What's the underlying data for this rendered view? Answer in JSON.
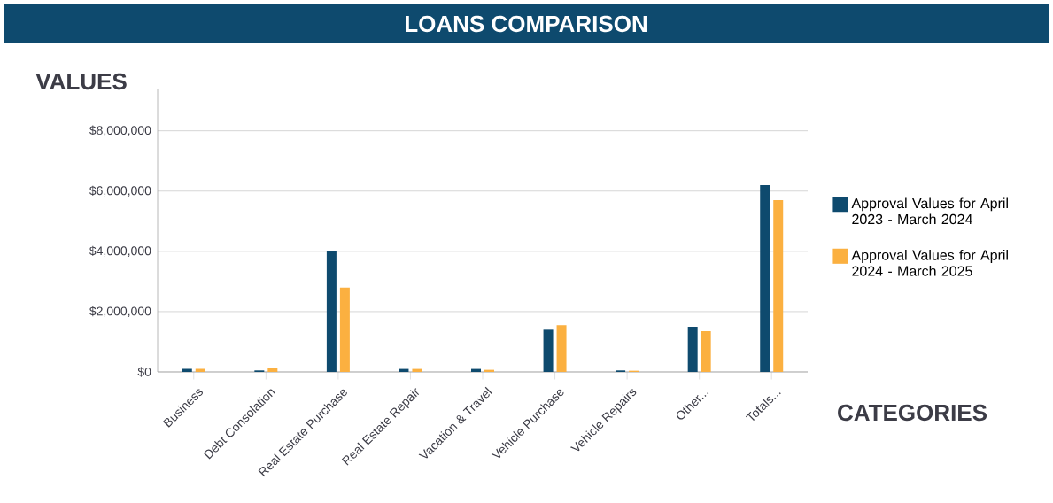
{
  "chart_data": {
    "type": "bar",
    "title": "LOANS COMPARISON",
    "xlabel": "CATEGORIES",
    "ylabel": "VALUES",
    "categories": [
      "Business",
      "Debt Consolation",
      "Real Estate Purchase",
      "Real Estate Repair",
      "Vacation & Travel",
      "Vehicle Purchase",
      "Vehicle Repairs",
      "Other...",
      "Totals..."
    ],
    "series": [
      {
        "name": "Approval Values for April 2023 - March 2024",
        "color": "#0e4a6e",
        "values": [
          100000,
          50000,
          4000000,
          100000,
          100000,
          1400000,
          50000,
          1500000,
          6200000
        ]
      },
      {
        "name": "Approval Values for April 2024 - March 2025",
        "color": "#fbb040",
        "values": [
          100000,
          120000,
          2800000,
          100000,
          70000,
          1550000,
          40000,
          1350000,
          5700000
        ]
      }
    ],
    "ylim": [
      0,
      9400000
    ],
    "yticks": [
      {
        "value": 0,
        "label": "$0"
      },
      {
        "value": 2000000,
        "label": "$2,000,000"
      },
      {
        "value": 4000000,
        "label": "$4,000,000"
      },
      {
        "value": 6000000,
        "label": "$6,000,000"
      },
      {
        "value": 8000000,
        "label": "$8,000,000"
      }
    ],
    "grid": "y",
    "legend": "right"
  }
}
